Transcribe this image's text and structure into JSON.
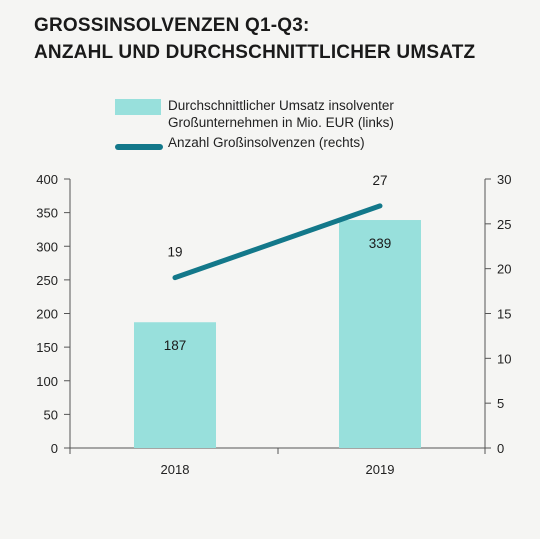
{
  "title": {
    "line1": "GROSSINSOLVENZEN Q1-Q3:",
    "line2": "ANZAHL UND DURCHSCHNITTLICHER UMSATZ"
  },
  "legend": {
    "bar_label_line1": "Durchschnittlicher Umsatz insolventer",
    "bar_label_line2": "Großunternehmen in Mio. EUR (links)",
    "line_label": "Anzahl Großinsolvenzen (rechts)"
  },
  "colors": {
    "bar": "#98e0dc",
    "line": "#13788a",
    "axis": "#555555"
  },
  "chart_data": {
    "type": "bar",
    "categories": [
      "2018",
      "2019"
    ],
    "series": [
      {
        "name": "Durchschnittlicher Umsatz insolventer Großunternehmen in Mio. EUR (links)",
        "type": "bar",
        "axis": "left",
        "values": [
          187,
          339
        ],
        "labels": [
          "187",
          "339"
        ]
      },
      {
        "name": "Anzahl Großinsolvenzen (rechts)",
        "type": "line",
        "axis": "right",
        "values": [
          19,
          27
        ],
        "labels": [
          "19",
          "27"
        ]
      }
    ],
    "y_left": {
      "range": [
        0,
        400
      ],
      "ticks": [
        0,
        50,
        100,
        150,
        200,
        250,
        300,
        350,
        400
      ]
    },
    "y_right": {
      "range": [
        0,
        30
      ],
      "ticks": [
        0,
        5,
        10,
        15,
        20,
        25,
        30
      ]
    },
    "grid": false,
    "legend_position": "top"
  }
}
